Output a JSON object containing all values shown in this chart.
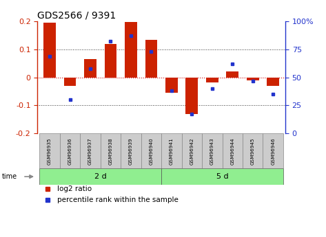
{
  "title": "GDS2566 / 9391",
  "samples": [
    "GSM96935",
    "GSM96936",
    "GSM96937",
    "GSM96938",
    "GSM96939",
    "GSM96940",
    "GSM96941",
    "GSM96942",
    "GSM96943",
    "GSM96944",
    "GSM96945",
    "GSM96946"
  ],
  "log2_ratio": [
    0.195,
    -0.03,
    0.065,
    0.12,
    0.197,
    0.135,
    -0.055,
    -0.13,
    -0.018,
    0.022,
    -0.01,
    -0.03
  ],
  "percentile_rank": [
    69,
    30,
    58,
    82,
    87,
    73,
    38,
    17,
    40,
    62,
    47,
    35
  ],
  "group1_label": "2 d",
  "group2_label": "5 d",
  "group1_count": 6,
  "group2_count": 6,
  "bar_color": "#CC2200",
  "dot_color": "#2233CC",
  "bar_width": 0.6,
  "ylim_left": [
    -0.2,
    0.2
  ],
  "ylim_right": [
    0,
    100
  ],
  "yticks_left": [
    -0.2,
    -0.1,
    0.0,
    0.1,
    0.2
  ],
  "yticks_right": [
    0,
    25,
    50,
    75,
    100
  ],
  "zero_line_color": "#CC0000",
  "dotted_line_color": "#333333",
  "background_color": "#ffffff",
  "group_bg_color": "#90EE90",
  "sample_bg_color": "#CCCCCC",
  "time_label": "time",
  "legend_bar_label": "log2 ratio",
  "legend_dot_label": "percentile rank within the sample",
  "dotted_lines_at": [
    -0.1,
    0.1
  ],
  "zero_line_at": 0.0
}
